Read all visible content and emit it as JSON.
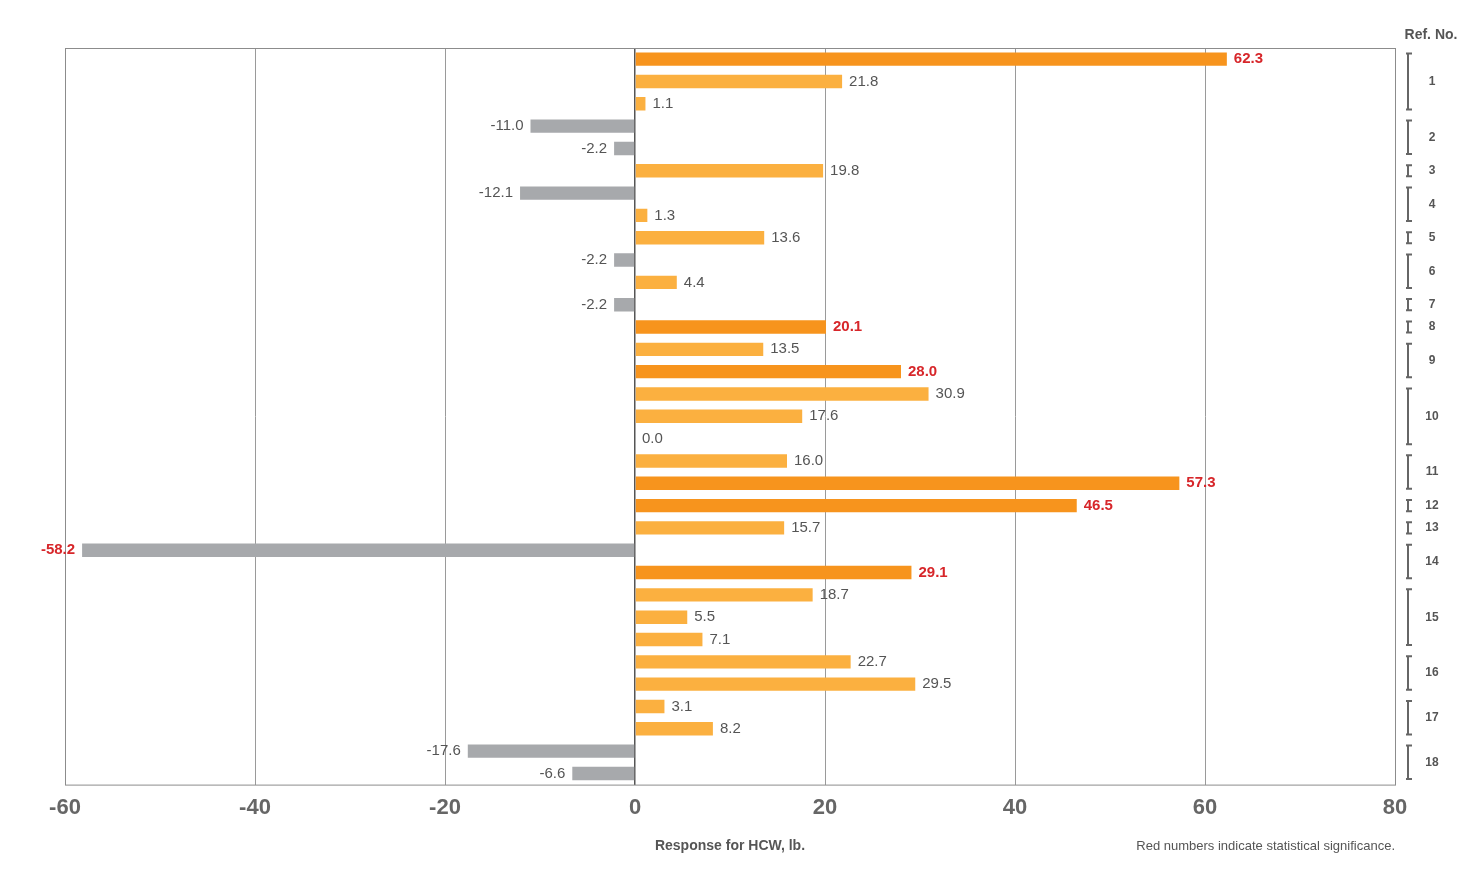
{
  "chart_data": {
    "type": "bar",
    "orientation": "horizontal",
    "x_label": "Response for HCW, lb.",
    "note": "Red numbers indicate statistical significance.",
    "group_label": "Ref. No.",
    "categories": [
      null,
      null,
      null,
      null,
      null,
      null,
      null,
      null,
      null,
      null,
      null,
      null,
      null,
      null,
      null,
      null,
      null,
      null,
      null,
      null,
      null,
      null,
      null,
      null,
      null,
      null,
      null,
      null,
      null,
      null,
      null,
      null,
      null
    ],
    "ref_no": [
      1,
      1,
      1,
      2,
      2,
      3,
      4,
      4,
      5,
      6,
      6,
      7,
      8,
      9,
      9,
      10,
      10,
      10,
      11,
      11,
      12,
      13,
      14,
      14,
      15,
      15,
      15,
      16,
      16,
      17,
      17,
      18,
      18
    ],
    "values": [
      62.3,
      21.8,
      1.1,
      -11.0,
      -2.2,
      19.8,
      -12.1,
      1.3,
      13.6,
      -2.2,
      4.4,
      -2.2,
      20.1,
      13.5,
      28.0,
      30.9,
      17.6,
      0.0,
      16.0,
      57.3,
      46.5,
      15.7,
      -58.2,
      29.1,
      18.7,
      5.5,
      7.1,
      22.7,
      29.5,
      3.1,
      8.2,
      -17.6,
      -6.6
    ],
    "value_labels": [
      "62.3",
      "21.8",
      "1.1",
      "-11.0",
      "-2.2",
      "19.8",
      "-12.1",
      "1.3",
      "13.6",
      "-2.2",
      "4.4",
      "-2.2",
      "20.1",
      "13.5",
      "28.0",
      "30.9",
      "17.6",
      "0.0",
      "16.0",
      "57.3",
      "46.5",
      "15.7",
      "-58.2",
      "29.1",
      "18.7",
      "5.5",
      "7.1",
      "22.7",
      "29.5",
      "3.1",
      "8.2",
      "-17.6",
      "-6.6"
    ],
    "significant": [
      true,
      false,
      false,
      false,
      false,
      false,
      false,
      false,
      false,
      false,
      false,
      false,
      true,
      false,
      true,
      false,
      false,
      false,
      false,
      true,
      true,
      false,
      true,
      true,
      false,
      false,
      false,
      false,
      false,
      false,
      false,
      false,
      false
    ],
    "colors": [
      "#f7941d",
      "#fbb040",
      "#fbb040",
      "#a7a9ac",
      "#a7a9ac",
      "#fbb040",
      "#a7a9ac",
      "#fbb040",
      "#fbb040",
      "#a7a9ac",
      "#fbb040",
      "#a7a9ac",
      "#f7941d",
      "#fbb040",
      "#f7941d",
      "#fbb040",
      "#fbb040",
      "#fbb040",
      "#fbb040",
      "#f7941d",
      "#f7941d",
      "#fbb040",
      "#a7a9ac",
      "#f7941d",
      "#fbb040",
      "#fbb040",
      "#fbb040",
      "#fbb040",
      "#fbb040",
      "#fbb040",
      "#fbb040",
      "#a7a9ac",
      "#a7a9ac"
    ],
    "xlim": [
      -60,
      80
    ],
    "xticks": [
      -60,
      -40,
      -20,
      0,
      20,
      40,
      60,
      80
    ],
    "grid": true,
    "data_labels": true,
    "tick_labels": "x"
  }
}
